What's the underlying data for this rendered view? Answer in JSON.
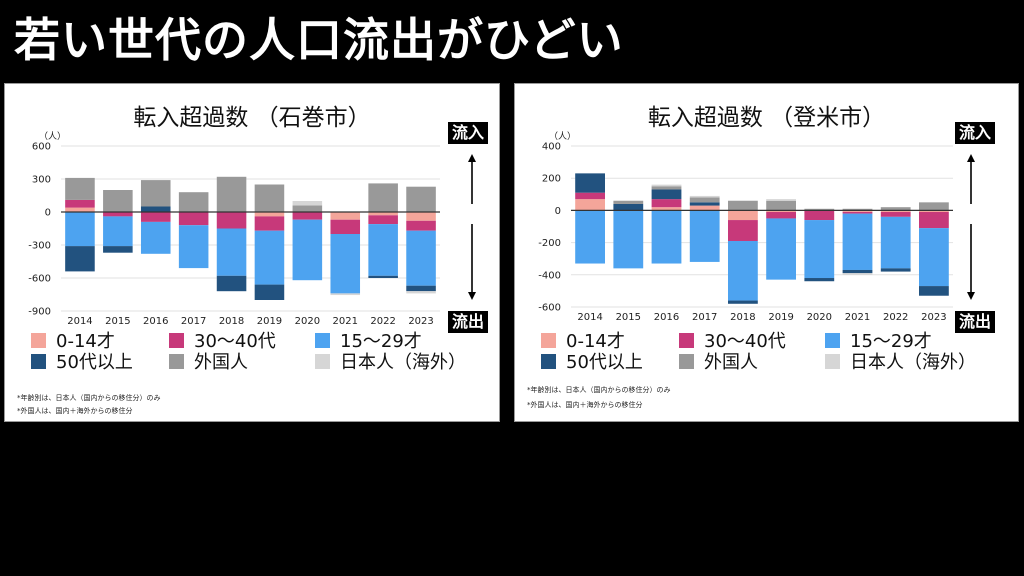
{
  "headline": "若い世代の人口流出がひどい",
  "legend": {
    "items": [
      {
        "label": "0-14才",
        "color": "#f4a59a"
      },
      {
        "label": "30〜40代",
        "color": "#c7397a"
      },
      {
        "label": "15〜29才",
        "color": "#4da3f0"
      },
      {
        "label": "50代以上",
        "color": "#22527f"
      },
      {
        "label": "外国人",
        "color": "#999999"
      },
      {
        "label": "日本人（海外）",
        "color": "#d6d6d6"
      }
    ]
  },
  "flow_labels": {
    "inflow": "流入",
    "outflow": "流出"
  },
  "charts": [
    {
      "title": "転入超過数 （石巻市）",
      "unit": "（人）",
      "notes": [
        "*年齢別は、日本人（国内からの移住分）のみ",
        "*外国人は、国内＋海外からの移住分"
      ]
    },
    {
      "title": "転入超過数 （登米市）",
      "unit": "（人）",
      "notes": [
        "*年齢別は、日本人（国内からの移住分）のみ",
        "*外国人は、国内＋海外からの移住分"
      ]
    }
  ],
  "chart_data": [
    {
      "type": "bar",
      "stacked": true,
      "title": "転入超過数 （石巻市）",
      "ylabel": "（人）",
      "ylim": [
        -900,
        600
      ],
      "yticks": [
        600,
        300,
        0,
        -300,
        -600,
        -900
      ],
      "categories": [
        "2014",
        "2015",
        "2016",
        "2017",
        "2018",
        "2019",
        "2020",
        "2021",
        "2022",
        "2023"
      ],
      "series": [
        {
          "name": "0-14才",
          "color": "#f4a59a",
          "values": [
            40,
            0,
            0,
            0,
            0,
            -40,
            0,
            -70,
            -30,
            -80
          ]
        },
        {
          "name": "30〜40代",
          "color": "#c7397a",
          "values": [
            70,
            -40,
            -90,
            -120,
            -150,
            -130,
            -70,
            -130,
            -80,
            -90
          ]
        },
        {
          "name": "15〜29才",
          "color": "#4da3f0",
          "values": [
            -310,
            -270,
            -290,
            -390,
            -430,
            -490,
            -550,
            -540,
            -470,
            -500
          ]
        },
        {
          "name": "50代以上",
          "color": "#22527f",
          "values": [
            -230,
            -60,
            50,
            0,
            -140,
            -140,
            0,
            0,
            -20,
            -50
          ]
        },
        {
          "name": "外国人",
          "color": "#999999",
          "values": [
            200,
            200,
            240,
            180,
            320,
            250,
            60,
            0,
            260,
            230
          ]
        },
        {
          "name": "日本人（海外）",
          "color": "#d6d6d6",
          "values": [
            0,
            0,
            0,
            0,
            0,
            0,
            40,
            -15,
            0,
            -20
          ]
        }
      ]
    },
    {
      "type": "bar",
      "stacked": true,
      "title": "転入超過数 （登米市）",
      "ylabel": "（人）",
      "ylim": [
        -600,
        400
      ],
      "yticks": [
        400,
        200,
        0,
        -200,
        -400,
        -600
      ],
      "categories": [
        "2014",
        "2015",
        "2016",
        "2017",
        "2018",
        "2019",
        "2020",
        "2021",
        "2022",
        "2023"
      ],
      "series": [
        {
          "name": "0-14才",
          "color": "#f4a59a",
          "values": [
            70,
            0,
            20,
            30,
            -60,
            -10,
            0,
            -10,
            -10,
            -10
          ]
        },
        {
          "name": "30〜40代",
          "color": "#c7397a",
          "values": [
            40,
            0,
            50,
            0,
            -130,
            -40,
            -60,
            -10,
            -30,
            -100
          ]
        },
        {
          "name": "15〜29才",
          "color": "#4da3f0",
          "values": [
            -330,
            -360,
            -330,
            -320,
            -370,
            -380,
            -360,
            -350,
            -320,
            -360
          ]
        },
        {
          "name": "50代以上",
          "color": "#22527f",
          "values": [
            120,
            40,
            60,
            20,
            -20,
            0,
            -20,
            -20,
            -20,
            -60
          ]
        },
        {
          "name": "外国人",
          "color": "#999999",
          "values": [
            0,
            20,
            20,
            30,
            60,
            60,
            10,
            10,
            20,
            50
          ]
        },
        {
          "name": "日本人（海外）",
          "color": "#d6d6d6",
          "values": [
            0,
            0,
            10,
            10,
            0,
            10,
            0,
            -10,
            0,
            0
          ]
        }
      ]
    }
  ]
}
